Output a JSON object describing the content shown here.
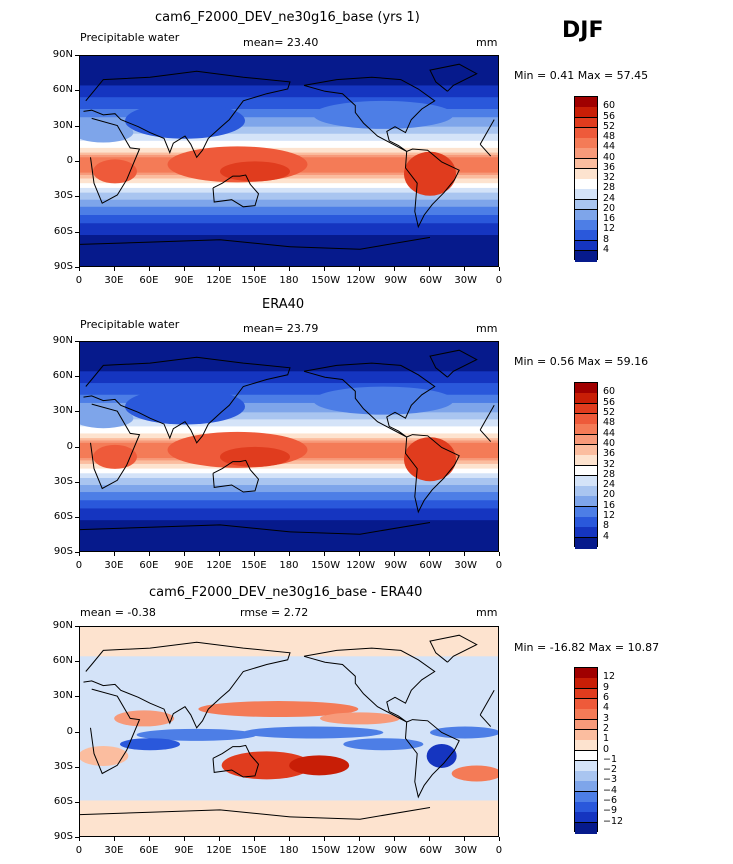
{
  "season": "DJF",
  "panels": [
    {
      "title": "cam6_F2000_DEV_ne30g16_base (yrs 1)",
      "left_text": "Precipitable water",
      "mid_text": "mean=  23.40",
      "right_text": "mm",
      "minmax_text": "Min =   0.41 Max =  57.45",
      "legend_labels": [
        "60",
        "56",
        "52",
        "48",
        "44",
        "40",
        "36",
        "32",
        "28",
        "24",
        "20",
        "16",
        "12",
        "8",
        "4"
      ],
      "legend_colors": [
        "#a00000",
        "#c81e06",
        "#e03c1e",
        "#ee5a3a",
        "#f47b57",
        "#f79a7a",
        "#fbbd9f",
        "#fde3cf",
        "#ffffff",
        "#d4e3f8",
        "#a9c5f0",
        "#7ea5ea",
        "#4d7ee6",
        "#2a58db",
        "#1535c0",
        "#061a8c"
      ],
      "map_type": "abs"
    },
    {
      "title": "ERA40",
      "left_text": "Precipitable water",
      "mid_text": "mean=  23.79",
      "right_text": "mm",
      "minmax_text": "Min =   0.56 Max =  59.16",
      "legend_labels": [
        "60",
        "56",
        "52",
        "48",
        "44",
        "40",
        "36",
        "32",
        "28",
        "24",
        "20",
        "16",
        "12",
        "8",
        "4"
      ],
      "legend_colors": [
        "#a00000",
        "#c81e06",
        "#e03c1e",
        "#ee5a3a",
        "#f47b57",
        "#f79a7a",
        "#fbbd9f",
        "#fde3cf",
        "#ffffff",
        "#d4e3f8",
        "#a9c5f0",
        "#7ea5ea",
        "#4d7ee6",
        "#2a58db",
        "#1535c0",
        "#061a8c"
      ],
      "map_type": "abs"
    },
    {
      "title": "cam6_F2000_DEV_ne30g16_base - ERA40",
      "left_text": "mean =  -0.38",
      "mid_text": "rmse =    2.72",
      "right_text": "mm",
      "minmax_text": "Min = -16.82 Max =  10.87",
      "legend_labels": [
        "12",
        "9",
        "6",
        "4",
        "3",
        "2",
        "1",
        "0",
        "−1",
        "−2",
        "−3",
        "−4",
        "−6",
        "−9",
        "−12"
      ],
      "legend_colors": [
        "#a00000",
        "#c81e06",
        "#e03c1e",
        "#ee5a3a",
        "#f47b57",
        "#f79a7a",
        "#fbbd9f",
        "#fde3cf",
        "#ffffff",
        "#d4e3f8",
        "#a9c5f0",
        "#7ea5ea",
        "#4d7ee6",
        "#2a58db",
        "#1535c0",
        "#061a8c"
      ],
      "map_type": "diff"
    }
  ],
  "lat_labels": [
    "90N",
    "60N",
    "30N",
    "0",
    "30S",
    "60S",
    "90S"
  ],
  "lon_labels": [
    "0",
    "30E",
    "60E",
    "90E",
    "120E",
    "150E",
    "180",
    "150W",
    "120W",
    "90W",
    "60W",
    "30W",
    "0"
  ]
}
